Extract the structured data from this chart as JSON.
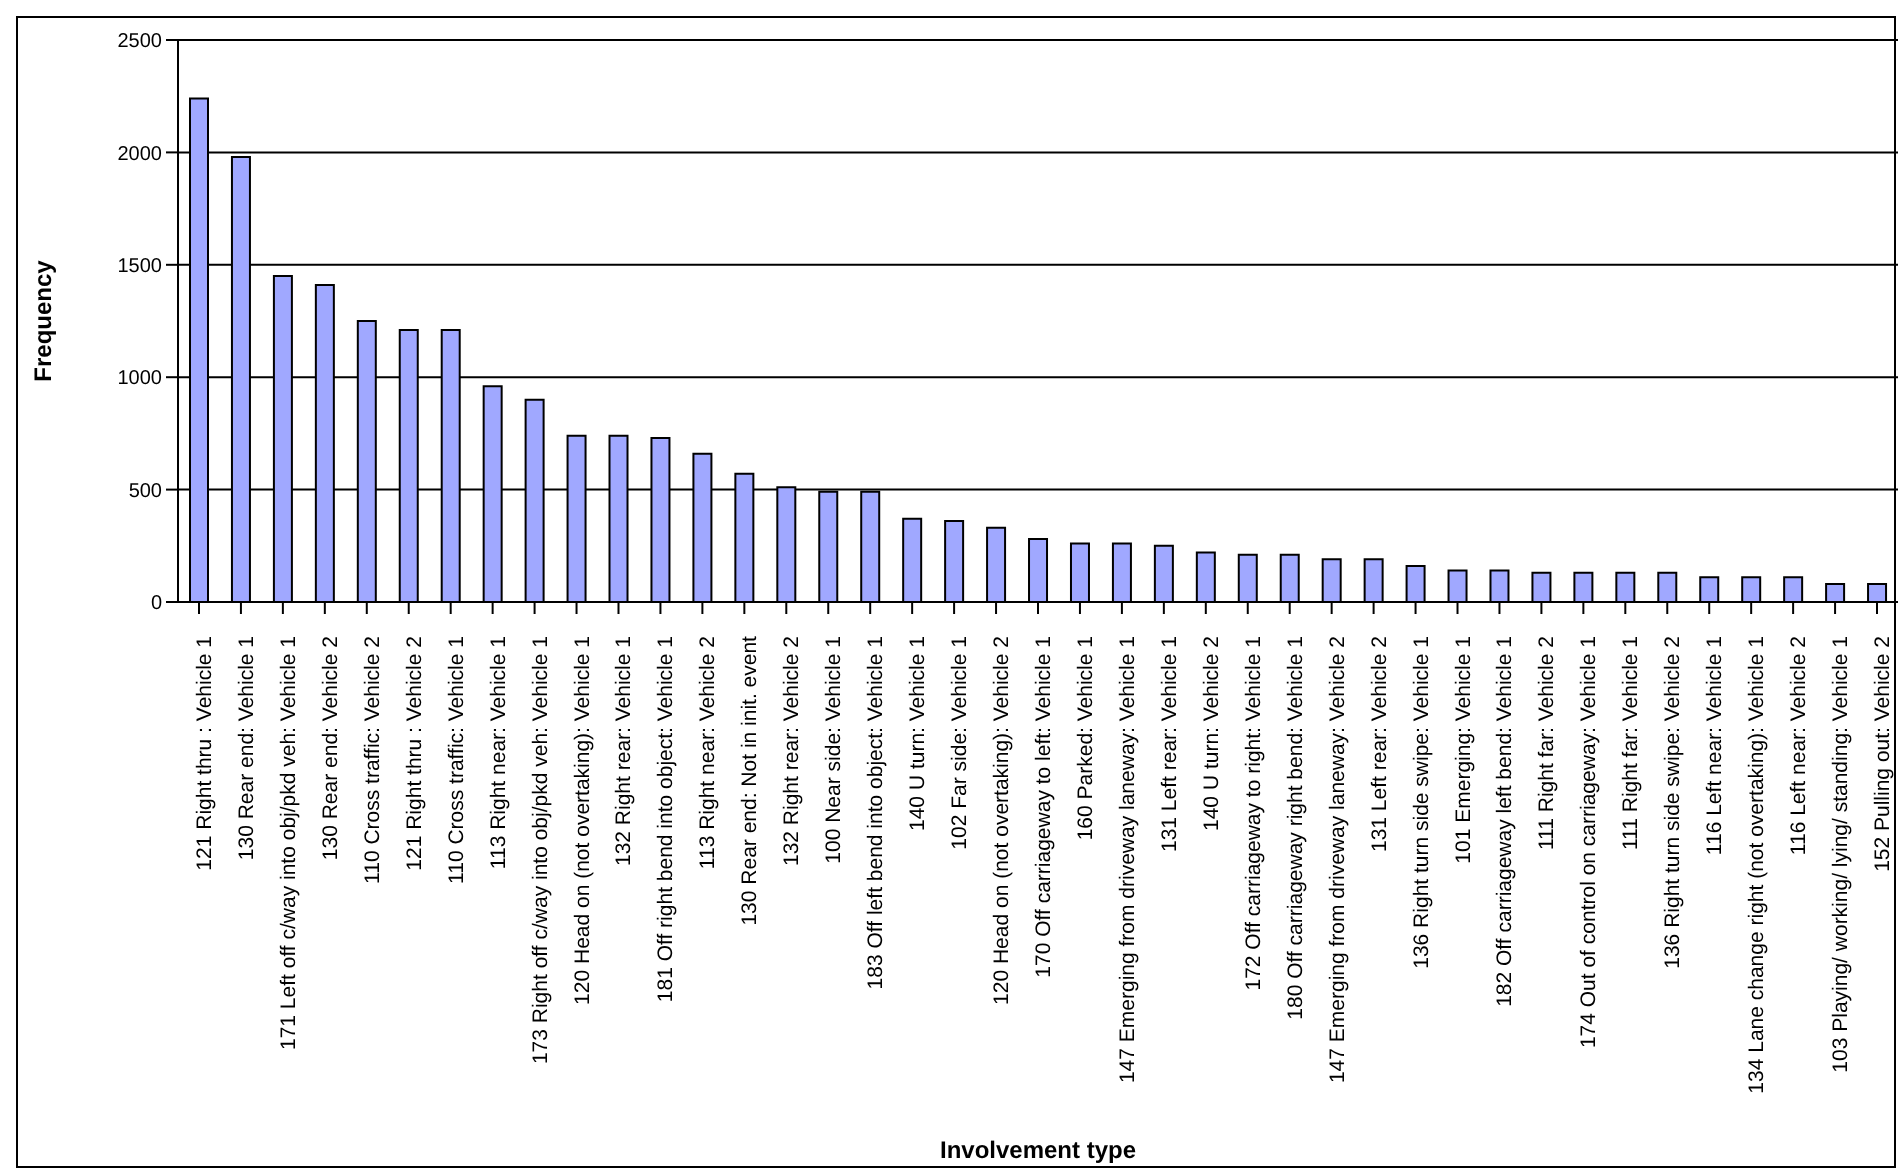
{
  "chart_data": {
    "type": "bar",
    "xlabel": "Involvement type",
    "ylabel": "Frequency",
    "categories": [
      "121 Right thru : Vehicle 1",
      "130 Rear end: Vehicle 1",
      "171 Left off c/way into obj/pkd veh: Vehicle 1",
      "130 Rear end: Vehicle 2",
      "110 Cross traffic: Vehicle 2",
      "121 Right thru : Vehicle 2",
      "110 Cross traffic: Vehicle 1",
      "113 Right near: Vehicle 1",
      "173 Right off c/way into obj/pkd veh: Vehicle 1",
      "120 Head on (not overtaking): Vehicle 1",
      "132 Right rear: Vehicle 1",
      "181 Off right bend into object: Vehicle 1",
      "113 Right near: Vehicle 2",
      "130 Rear end: Not in init. event",
      "132 Right rear: Vehicle 2",
      "100 Near side: Vehicle 1",
      "183 Off left bend into object: Vehicle 1",
      "140 U turn: Vehicle 1",
      "102 Far side: Vehicle 1",
      "120 Head on (not overtaking): Vehicle 2",
      "170 Off carriageway to left: Vehicle 1",
      "160 Parked: Vehicle 1",
      "147 Emerging from driveway laneway: Vehicle 1",
      "131 Left rear: Vehicle 1",
      "140 U turn: Vehicle 2",
      "172 Off carriageway to right: Vehicle 1",
      "180 Off carriageway right bend: Vehicle 1",
      "147 Emerging from driveway laneway: Vehicle 2",
      "131 Left rear: Vehicle 2",
      "136 Right turn side swipe: Vehicle 1",
      "101 Emerging: Vehicle 1",
      "182 Off carriageway left bend: Vehicle 1",
      "111 Right far: Vehicle 2",
      "174 Out of control on carriageway: Vehicle 1",
      "111 Right far: Vehicle 1",
      "136 Right turn side swipe: Vehicle 2",
      "116 Left near: Vehicle 1",
      "134 Lane change right (not overtaking): Vehicle 1",
      "116 Left near: Vehicle 2",
      "103 Playing/ working/ lying/ standing: Vehicle 1",
      "152 Pulling out: Vehicle 2"
    ],
    "values": [
      2240,
      1980,
      1450,
      1410,
      1250,
      1210,
      1210,
      960,
      900,
      740,
      740,
      730,
      660,
      570,
      510,
      490,
      490,
      370,
      360,
      330,
      280,
      260,
      260,
      250,
      220,
      210,
      210,
      190,
      190,
      160,
      140,
      140,
      130,
      130,
      130,
      130,
      110,
      110,
      110,
      80,
      80
    ],
    "color": "#a0a8ff",
    "ylim": [
      0,
      2500
    ],
    "yticks": [
      0,
      500,
      1000,
      1500,
      2000,
      2500
    ],
    "grid": "y"
  }
}
